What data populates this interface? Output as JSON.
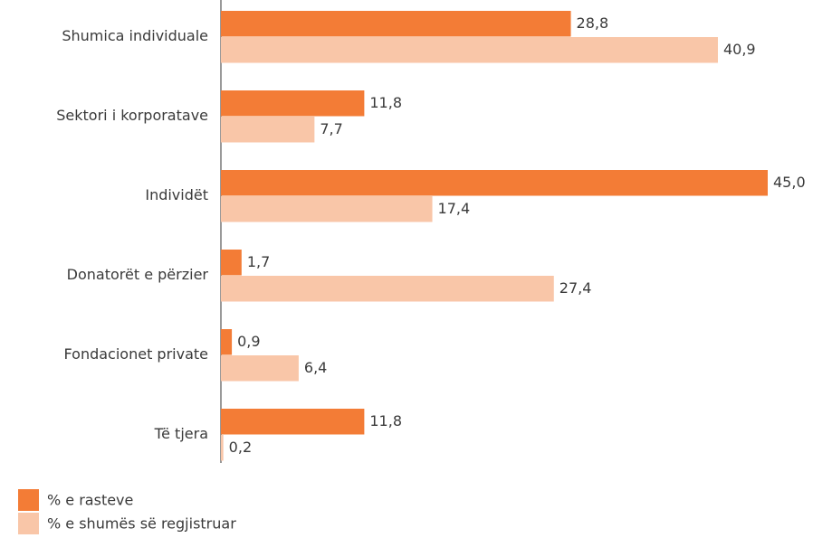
{
  "chart_data": {
    "type": "barh",
    "categories": [
      "Shumica individuale",
      "Sektori i korporatave",
      "Individët",
      "Donatorët e përzier",
      "Fondacionet private",
      "Të tjera"
    ],
    "series": [
      {
        "name": "% e rasteve",
        "color": "#f37c36",
        "values": [
          28.8,
          11.8,
          45.0,
          1.7,
          0.9,
          11.8
        ],
        "value_labels": [
          "28,8",
          "11,8",
          "45,0",
          "1,7",
          "0,9",
          "11,8"
        ]
      },
      {
        "name": "% e shumës së regjistruar",
        "color": "#f9c6a8",
        "values": [
          40.9,
          7.7,
          17.4,
          27.4,
          6.4,
          0.2
        ],
        "value_labels": [
          "40,9",
          "7,7",
          "17,4",
          "27,4",
          "6,4",
          "0,2"
        ]
      }
    ],
    "legend": "bottom-left"
  }
}
